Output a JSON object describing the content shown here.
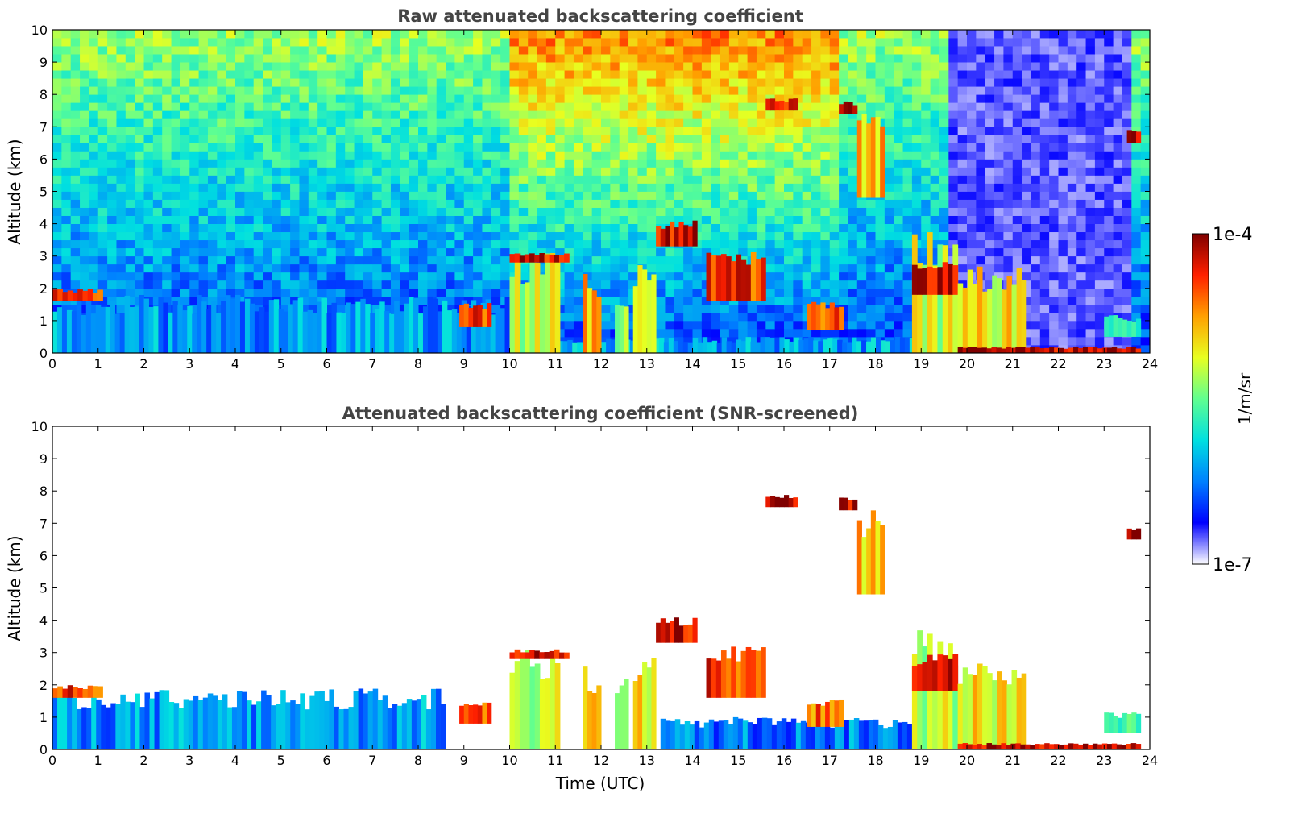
{
  "chart_data": [
    {
      "type": "heatmap",
      "title": "Raw attenuated backscattering coefficient",
      "xlabel": "",
      "ylabel": "Altitude (km)",
      "xlim": [
        0,
        24
      ],
      "ylim": [
        0,
        10
      ],
      "xticks": [
        "0",
        "1",
        "2",
        "3",
        "4",
        "5",
        "6",
        "7",
        "8",
        "9",
        "10",
        "11",
        "12",
        "13",
        "14",
        "15",
        "16",
        "17",
        "18",
        "19",
        "20",
        "21",
        "22",
        "23",
        "24"
      ],
      "yticks": [
        "0",
        "1",
        "2",
        "3",
        "4",
        "5",
        "6",
        "7",
        "8",
        "9",
        "10"
      ],
      "noise": "background",
      "features": [
        {
          "label": "boundary layer",
          "t0": 0,
          "t1": 10,
          "z0": 0,
          "z1": 1.8,
          "level": 0.28
        },
        {
          "label": "boundary layer top",
          "t0": 0,
          "t1": 1.1,
          "z0": 1.6,
          "z1": 2.0,
          "level": 0.85
        },
        {
          "label": "boundary layer",
          "t0": 10,
          "t1": 19.8,
          "z0": 0,
          "z1": 0.5,
          "level": 0.3
        },
        {
          "label": "precipitation",
          "t0": 10.0,
          "t1": 11.1,
          "z0": 0,
          "z1": 3.1,
          "level": 0.6
        },
        {
          "label": "precipitation",
          "t0": 11.6,
          "t1": 12.0,
          "z0": 0,
          "z1": 2.6,
          "level": 0.7
        },
        {
          "label": "precipitation",
          "t0": 12.3,
          "t1": 12.6,
          "z0": 0,
          "z1": 2.2,
          "level": 0.6
        },
        {
          "label": "precipitation",
          "t0": 12.7,
          "t1": 13.2,
          "z0": 0,
          "z1": 3.1,
          "level": 0.68
        },
        {
          "label": "cloud layer",
          "t0": 10.0,
          "t1": 11.3,
          "z0": 2.8,
          "z1": 3.1,
          "level": 0.92
        },
        {
          "label": "cloud layer",
          "t0": 13.2,
          "t1": 14.1,
          "z0": 3.3,
          "z1": 4.1,
          "level": 0.93
        },
        {
          "label": "cirrus",
          "t0": 15.6,
          "t1": 16.3,
          "z0": 7.5,
          "z1": 7.9,
          "level": 0.93
        },
        {
          "label": "cirrus",
          "t0": 17.2,
          "t1": 17.6,
          "z0": 7.4,
          "z1": 7.8,
          "level": 0.95
        },
        {
          "label": "cirrus fall streak",
          "t0": 17.6,
          "t1": 18.2,
          "z0": 4.8,
          "z1": 7.4,
          "level": 0.7
        },
        {
          "label": "cloud layer",
          "t0": 14.3,
          "t1": 15.6,
          "z0": 1.6,
          "z1": 3.2,
          "level": 0.85
        },
        {
          "label": "precipitation",
          "t0": 18.8,
          "t1": 19.8,
          "z0": 0,
          "z1": 3.9,
          "level": 0.6
        },
        {
          "label": "cloud layer",
          "t0": 18.8,
          "t1": 19.8,
          "z0": 1.8,
          "z1": 3.0,
          "level": 0.95
        },
        {
          "label": "precipitation",
          "t0": 19.8,
          "t1": 21.3,
          "z0": 0,
          "z1": 2.7,
          "level": 0.65
        },
        {
          "label": "surface layer",
          "t0": 19.8,
          "t1": 23.8,
          "z0": 0,
          "z1": 0.2,
          "level": 0.95
        },
        {
          "label": "low cloud",
          "t0": 23.0,
          "t1": 23.8,
          "z0": 0.5,
          "z1": 1.2,
          "level": 0.5
        },
        {
          "label": "cirrus",
          "t0": 23.5,
          "t1": 23.8,
          "z0": 6.5,
          "z1": 6.9,
          "level": 0.97
        },
        {
          "label": "cloud layer",
          "t0": 8.9,
          "t1": 9.6,
          "z0": 0.8,
          "z1": 1.6,
          "level": 0.85
        },
        {
          "label": "cloud layer",
          "t0": 16.5,
          "t1": 17.3,
          "z0": 0.7,
          "z1": 1.7,
          "level": 0.8
        }
      ]
    },
    {
      "type": "heatmap",
      "title": "Attenuated backscattering coefficient (SNR-screened)",
      "xlabel": "Time (UTC)",
      "ylabel": "Altitude (km)",
      "xlim": [
        0,
        24
      ],
      "ylim": [
        0,
        10
      ],
      "xticks": [
        "0",
        "1",
        "2",
        "3",
        "4",
        "5",
        "6",
        "7",
        "8",
        "9",
        "10",
        "11",
        "12",
        "13",
        "14",
        "15",
        "16",
        "17",
        "18",
        "19",
        "20",
        "21",
        "22",
        "23",
        "24"
      ],
      "yticks": [
        "0",
        "1",
        "2",
        "3",
        "4",
        "5",
        "6",
        "7",
        "8",
        "9",
        "10"
      ],
      "noise": "none",
      "features": [
        {
          "label": "boundary layer",
          "t0": 0,
          "t1": 8.6,
          "z0": 0,
          "z1": 1.9,
          "level": 0.28
        },
        {
          "label": "boundary layer top",
          "t0": 0,
          "t1": 1.1,
          "z0": 1.6,
          "z1": 2.0,
          "level": 0.85
        },
        {
          "label": "boundary layer",
          "t0": 13.3,
          "t1": 18.8,
          "z0": 0,
          "z1": 1.0,
          "level": 0.25
        },
        {
          "label": "precipitation",
          "t0": 10.0,
          "t1": 11.1,
          "z0": 0,
          "z1": 3.1,
          "level": 0.6
        },
        {
          "label": "precipitation",
          "t0": 11.6,
          "t1": 12.0,
          "z0": 0,
          "z1": 2.6,
          "level": 0.7
        },
        {
          "label": "precipitation",
          "t0": 12.3,
          "t1": 12.6,
          "z0": 0,
          "z1": 2.2,
          "level": 0.6
        },
        {
          "label": "precipitation",
          "t0": 12.7,
          "t1": 13.2,
          "z0": 0,
          "z1": 3.1,
          "level": 0.68
        },
        {
          "label": "cloud layer",
          "t0": 10.0,
          "t1": 11.3,
          "z0": 2.8,
          "z1": 3.1,
          "level": 0.92
        },
        {
          "label": "cloud layer",
          "t0": 13.2,
          "t1": 14.1,
          "z0": 3.3,
          "z1": 4.1,
          "level": 0.93
        },
        {
          "label": "cirrus",
          "t0": 15.6,
          "t1": 16.3,
          "z0": 7.5,
          "z1": 7.9,
          "level": 0.93
        },
        {
          "label": "cirrus",
          "t0": 17.2,
          "t1": 17.6,
          "z0": 7.4,
          "z1": 7.8,
          "level": 0.95
        },
        {
          "label": "cirrus fall streak",
          "t0": 17.6,
          "t1": 18.2,
          "z0": 4.8,
          "z1": 7.4,
          "level": 0.7
        },
        {
          "label": "cloud layer",
          "t0": 14.3,
          "t1": 15.6,
          "z0": 1.6,
          "z1": 3.2,
          "level": 0.85
        },
        {
          "label": "precipitation",
          "t0": 18.8,
          "t1": 19.8,
          "z0": 0,
          "z1": 3.9,
          "level": 0.6
        },
        {
          "label": "cloud layer",
          "t0": 18.8,
          "t1": 19.8,
          "z0": 1.8,
          "z1": 3.0,
          "level": 0.95
        },
        {
          "label": "precipitation",
          "t0": 19.8,
          "t1": 21.3,
          "z0": 0,
          "z1": 2.7,
          "level": 0.65
        },
        {
          "label": "surface layer",
          "t0": 19.8,
          "t1": 23.8,
          "z0": 0,
          "z1": 0.2,
          "level": 0.95
        },
        {
          "label": "low cloud",
          "t0": 23.0,
          "t1": 23.8,
          "z0": 0.5,
          "z1": 1.2,
          "level": 0.5
        },
        {
          "label": "cirrus",
          "t0": 23.5,
          "t1": 23.8,
          "z0": 6.5,
          "z1": 6.9,
          "level": 0.97
        },
        {
          "label": "cloud layer",
          "t0": 8.9,
          "t1": 9.6,
          "z0": 0.8,
          "z1": 1.6,
          "level": 0.85
        },
        {
          "label": "cloud layer",
          "t0": 16.5,
          "t1": 17.3,
          "z0": 0.7,
          "z1": 1.7,
          "level": 0.8
        }
      ]
    }
  ],
  "colorbar": {
    "label": "1/m/sr",
    "min_label": "1e-7",
    "max_label": "1e-4",
    "scale": "log",
    "colormap": "jet",
    "stops": [
      "#ffffff",
      "#0000ff",
      "#0080ff",
      "#00e0e0",
      "#60ff90",
      "#e8ff20",
      "#ffa000",
      "#ff2000",
      "#800000"
    ]
  }
}
